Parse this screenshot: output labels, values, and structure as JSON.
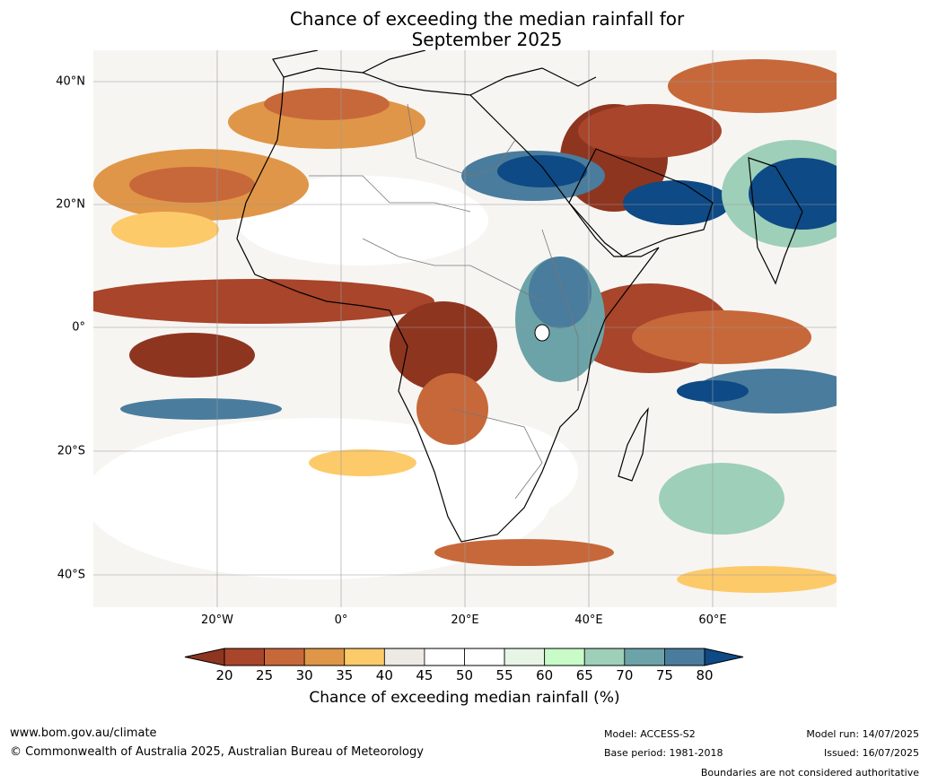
{
  "title": {
    "line1": "Chance of exceeding the median rainfall for",
    "line2": "September 2025"
  },
  "map": {
    "lat_labels": [
      "40°N",
      "20°N",
      "0°",
      "20°S",
      "40°S"
    ],
    "lon_labels": [
      "20°W",
      "0°",
      "20°E",
      "40°E",
      "60°E"
    ]
  },
  "colorbar": {
    "ticks": [
      "20",
      "25",
      "30",
      "35",
      "40",
      "45",
      "50",
      "55",
      "60",
      "65",
      "70",
      "75",
      "80"
    ],
    "colors": [
      "#8e3520",
      "#a8452a",
      "#c7683a",
      "#e09648",
      "#fdca6a",
      "#ede9e4",
      "#ffffff",
      "#ffffff",
      "#e7f5e7",
      "#c8fbc8",
      "#9ecfb9",
      "#6ba3a8",
      "#4a7c9d",
      "#0e4a85"
    ],
    "title": "Chance of exceeding median rainfall (%)"
  },
  "footer": {
    "website": "www.bom.gov.au/climate",
    "copyright": "© Commonwealth of Australia 2025, Australian Bureau of Meteorology",
    "model": "Model: ACCESS-S2",
    "base_period": "Base period: 1981-2018",
    "model_run": "Model run: 14/07/2025",
    "issued": "Issued: 16/07/2025",
    "disclaimer": "Boundaries are not considered authoritative"
  }
}
